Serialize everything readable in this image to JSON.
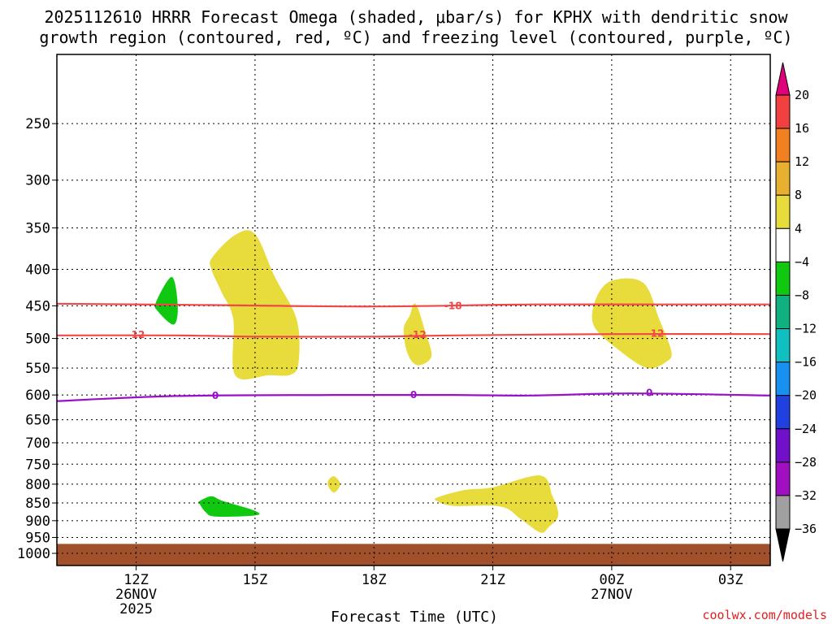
{
  "chart_data": {
    "type": "heatmap",
    "title": "2025112610 HRRR Forecast Omega (shaded, μbar/s) for KPHX with dendritic snow growth region (contoured, red, ºC) and freezing level (contoured, purple, ºC)",
    "title_lines": [
      "2025112610 HRRR Forecast Omega (shaded, μbar/s) for KPHX with dendritic snow",
      "growth region (contoured, red, ºC) and freezing level (contoured, purple, ºC)"
    ],
    "xlabel": "Forecast Time (UTC)",
    "x_ticks": [
      {
        "label": "12Z",
        "sub": [
          "26NOV",
          "2025"
        ]
      },
      {
        "label": "15Z",
        "sub": []
      },
      {
        "label": "18Z",
        "sub": []
      },
      {
        "label": "21Z",
        "sub": []
      },
      {
        "label": "00Z",
        "sub": [
          "27NOV"
        ]
      },
      {
        "label": "03Z",
        "sub": []
      }
    ],
    "x_tick_hours": [
      12,
      15,
      18,
      21,
      24,
      27
    ],
    "xlim_hours": [
      10,
      28
    ],
    "y_scale": "log-pressure, inverted",
    "ylim": [
      1040,
      200
    ],
    "y_ticks": [
      250,
      300,
      350,
      400,
      450,
      500,
      550,
      600,
      650,
      700,
      750,
      800,
      850,
      900,
      950,
      1000
    ],
    "grid": true,
    "colorbar": {
      "levels": [
        "20",
        "16",
        "12",
        "8",
        "4",
        "−4",
        "−8",
        "−12",
        "−16",
        "−20",
        "−24",
        "−28",
        "−32",
        "−36"
      ],
      "colors_top_to_bottom": [
        "#e0007a",
        "#f04040",
        "#f08020",
        "#e8b030",
        "#e8dc3c",
        "#ffffff",
        "#10c810",
        "#10b080",
        "#10c0c0",
        "#1890f0",
        "#2040e0",
        "#7010c8",
        "#a010c0",
        "#a0a0a0",
        "#000000"
      ]
    },
    "shaded_regions": [
      {
        "name": "omega-positive-upper-1",
        "color": "#e8dc3c",
        "points": [
          [
            13.92,
            385
          ],
          [
            14.5,
            358
          ],
          [
            15.0,
            357
          ],
          [
            15.5,
            410
          ],
          [
            16.05,
            470
          ],
          [
            16.1,
            540
          ],
          [
            15.9,
            562
          ],
          [
            15.35,
            563
          ],
          [
            14.5,
            563
          ],
          [
            14.45,
            470
          ],
          [
            14.15,
            430
          ],
          [
            13.9,
            400
          ]
        ]
      },
      {
        "name": "omega-positive-mid-1",
        "color": "#e8dc3c",
        "points": [
          [
            19.05,
            447
          ],
          [
            19.3,
            490
          ],
          [
            19.45,
            530
          ],
          [
            19.1,
            545
          ],
          [
            18.85,
            525
          ],
          [
            18.75,
            485
          ],
          [
            18.9,
            465
          ]
        ]
      },
      {
        "name": "omega-positive-upper-2",
        "color": "#e8dc3c",
        "points": [
          [
            23.6,
            440
          ],
          [
            24.0,
            415
          ],
          [
            24.8,
            418
          ],
          [
            25.2,
            470
          ],
          [
            25.5,
            520
          ],
          [
            25.4,
            538
          ],
          [
            24.9,
            550
          ],
          [
            24.2,
            520
          ],
          [
            23.55,
            480
          ]
        ]
      },
      {
        "name": "omega-positive-low-1",
        "color": "#e8dc3c",
        "points": [
          [
            16.85,
            790
          ],
          [
            17.0,
            780
          ],
          [
            17.15,
            800
          ],
          [
            17.0,
            822
          ],
          [
            16.85,
            806
          ]
        ]
      },
      {
        "name": "omega-positive-low-2",
        "color": "#e8dc3c",
        "points": [
          [
            19.6,
            835
          ],
          [
            20.3,
            815
          ],
          [
            21.0,
            808
          ],
          [
            22.2,
            778
          ],
          [
            22.5,
            830
          ],
          [
            22.65,
            885
          ],
          [
            22.4,
            920
          ],
          [
            22.2,
            935
          ],
          [
            21.7,
            895
          ],
          [
            21.2,
            860
          ],
          [
            20.0,
            858
          ],
          [
            19.6,
            845
          ]
        ]
      },
      {
        "name": "omega-negative-upper",
        "color": "#10c810",
        "points": [
          [
            12.5,
            445
          ],
          [
            12.9,
            410
          ],
          [
            13.05,
            450
          ],
          [
            12.95,
            478
          ],
          [
            12.55,
            458
          ]
        ]
      },
      {
        "name": "omega-negative-low",
        "color": "#10c810",
        "points": [
          [
            13.6,
            845
          ],
          [
            13.9,
            832
          ],
          [
            14.2,
            845
          ],
          [
            15.0,
            872
          ],
          [
            15.0,
            885
          ],
          [
            14.0,
            888
          ],
          [
            13.75,
            875
          ],
          [
            13.6,
            852
          ]
        ]
      }
    ],
    "contours": [
      {
        "name": "dgz-minus18",
        "label": "-18",
        "color": "#f04848",
        "label_at": [
          20.0,
          450
        ],
        "points": [
          [
            10,
            447
          ],
          [
            14,
            449
          ],
          [
            18,
            451
          ],
          [
            22,
            448
          ],
          [
            25,
            448
          ],
          [
            28,
            448
          ]
        ]
      },
      {
        "name": "dgz-minus12",
        "label": "-12",
        "color": "#f04848",
        "label_at": [
          12.0,
          494
        ],
        "label_at_extra": [
          [
            19.1,
            494
          ],
          [
            25.1,
            492
          ]
        ],
        "points": [
          [
            10,
            495
          ],
          [
            13,
            495
          ],
          [
            15,
            497
          ],
          [
            18,
            497
          ],
          [
            20,
            495
          ],
          [
            24,
            493
          ],
          [
            28,
            493
          ]
        ]
      },
      {
        "name": "freezing-level",
        "label": "0",
        "color": "#9a10c8",
        "label_at": [
          14.0,
          601
        ],
        "label_at_extra": [
          [
            19.0,
            600
          ],
          [
            24.95,
            596
          ]
        ],
        "points": [
          [
            10,
            612
          ],
          [
            13,
            602
          ],
          [
            17,
            600
          ],
          [
            20,
            600
          ],
          [
            22,
            601
          ],
          [
            24.5,
            597
          ],
          [
            28,
            601
          ]
        ]
      }
    ],
    "surface": {
      "color": "#a0502a",
      "from_pressure": 970
    }
  },
  "credit": "coolwx.com/models"
}
